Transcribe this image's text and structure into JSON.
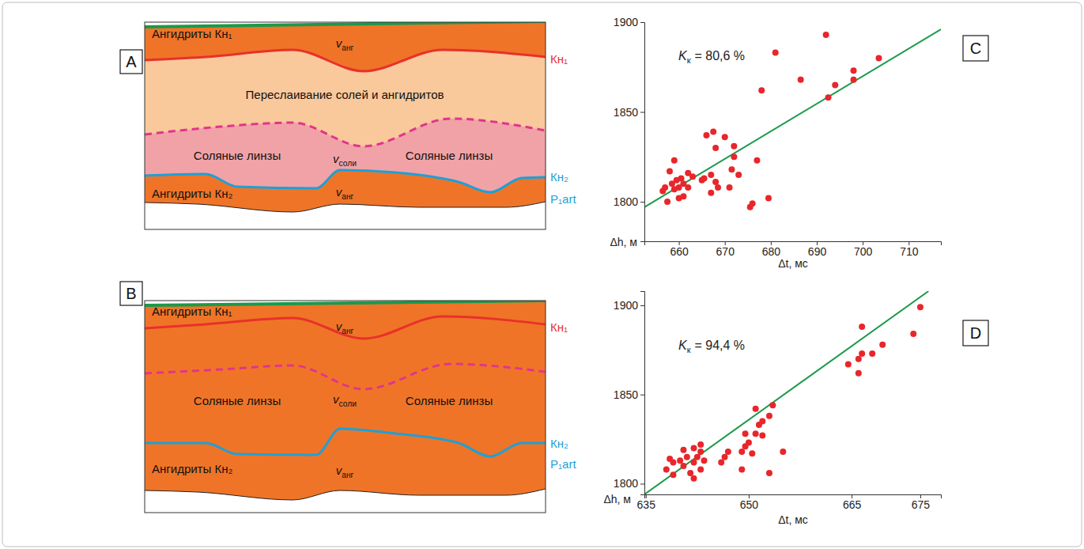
{
  "diagrams": [
    {
      "letter": "A",
      "top_layer": "Ангидриты Кн₁",
      "middle_layer": "Переслаивание солей и ангидритов",
      "lens_labels": [
        "Соляные линзы",
        "Соляные линзы"
      ],
      "bottom_layer": "Ангидриты Кн₂",
      "velocities": [
        {
          "symbol": "v",
          "subscript": "анг"
        },
        {
          "symbol": "v",
          "subscript": "соли"
        },
        {
          "symbol": "v",
          "subscript": "анг"
        }
      ],
      "horizons": [
        "Кн₁",
        "Кн₂",
        "P₁art"
      ]
    },
    {
      "letter": "B",
      "top_layer": "Ангидриты Кн₁",
      "lens_labels": [
        "Соляные линзы",
        "Соляные линзы"
      ],
      "bottom_layer": "Ангидриты Кн₂",
      "velocities": [
        {
          "symbol": "v",
          "subscript": "анг"
        },
        {
          "symbol": "v",
          "subscript": "соли"
        },
        {
          "symbol": "v",
          "subscript": "анг"
        }
      ],
      "horizons": [
        "Кн₁",
        "Кн₂",
        "P₁art"
      ]
    }
  ],
  "chart_data": [
    {
      "letter": "C",
      "type": "scatter",
      "annotation": {
        "symbol": "K",
        "subscript": "к",
        "text": "= 80,6 %"
      },
      "x_label": "Δt, мс",
      "y_label": "Δh, м",
      "color": "#e8262b",
      "marker": "circle",
      "x": [
        656.5,
        657,
        657.5,
        658,
        658.5,
        659,
        659,
        659.5,
        660,
        660,
        660.5,
        661,
        661,
        662,
        662,
        663,
        665,
        665.5,
        666,
        667,
        667,
        667.5,
        668,
        668,
        668.5,
        670,
        671,
        671.5,
        672,
        672,
        673,
        675.5,
        676,
        677,
        678,
        679.5,
        681,
        686.5,
        692,
        692.5,
        694,
        698,
        698,
        703.5
      ],
      "y": [
        1806,
        1808,
        1800,
        1817,
        1810,
        1823,
        1807,
        1812,
        1808,
        1802,
        1813,
        1810,
        1803,
        1816,
        1808,
        1814,
        1812,
        1813,
        1837,
        1805,
        1815,
        1839,
        1811,
        1830,
        1808,
        1836,
        1808,
        1818,
        1831,
        1825,
        1815,
        1797,
        1799,
        1823,
        1862,
        1802,
        1883,
        1868,
        1893,
        1858,
        1865,
        1873,
        1868,
        1880
      ],
      "trend_line": {
        "x": [
          652.5,
          717
        ],
        "y": [
          1797,
          1896
        ],
        "color": "#1a9a4a"
      },
      "xlim": [
        652.5,
        717
      ],
      "ylim": [
        1778,
        1900
      ],
      "xticks": [
        660,
        670,
        680,
        690,
        700,
        710
      ],
      "yticks": [
        1800,
        1850,
        1900
      ]
    },
    {
      "letter": "D",
      "type": "scatter",
      "annotation": {
        "symbol": "K",
        "subscript": "к",
        "text": "= 94,4 %"
      },
      "x_label": "Δt, мс",
      "y_label": "Δh, м",
      "color": "#e8262b",
      "marker": "circle",
      "x": [
        638,
        638.5,
        639,
        639,
        640,
        640.5,
        640.5,
        641,
        641.5,
        642,
        642,
        642,
        642.5,
        643,
        643,
        643,
        643.5,
        646,
        646.5,
        647,
        649,
        649,
        649.5,
        649.5,
        650,
        650.5,
        651,
        651,
        651.5,
        652,
        652,
        653,
        653,
        653.5,
        655,
        664.5,
        666,
        666,
        666.5,
        666.5,
        668,
        669.5,
        674,
        675
      ],
      "y": [
        1808,
        1814,
        1805,
        1812,
        1813,
        1819,
        1810,
        1815,
        1806,
        1812,
        1820,
        1803,
        1815,
        1818,
        1808,
        1822,
        1813,
        1812,
        1815,
        1818,
        1808,
        1818,
        1821,
        1828,
        1823,
        1817,
        1842,
        1828,
        1833,
        1827,
        1835,
        1806,
        1838,
        1844,
        1818,
        1867,
        1862,
        1870,
        1873,
        1888,
        1873,
        1878,
        1884,
        1899
      ],
      "trend_line": {
        "x": [
          634.8,
          676.2
        ],
        "y": [
          1794,
          1908
        ],
        "color": "#1a9a4a"
      },
      "xlim": [
        634.8,
        678
      ],
      "ylim": [
        1794,
        1908
      ],
      "xticks": [
        635,
        650,
        665,
        675
      ],
      "yticks": [
        1800,
        1850,
        1900
      ]
    }
  ]
}
